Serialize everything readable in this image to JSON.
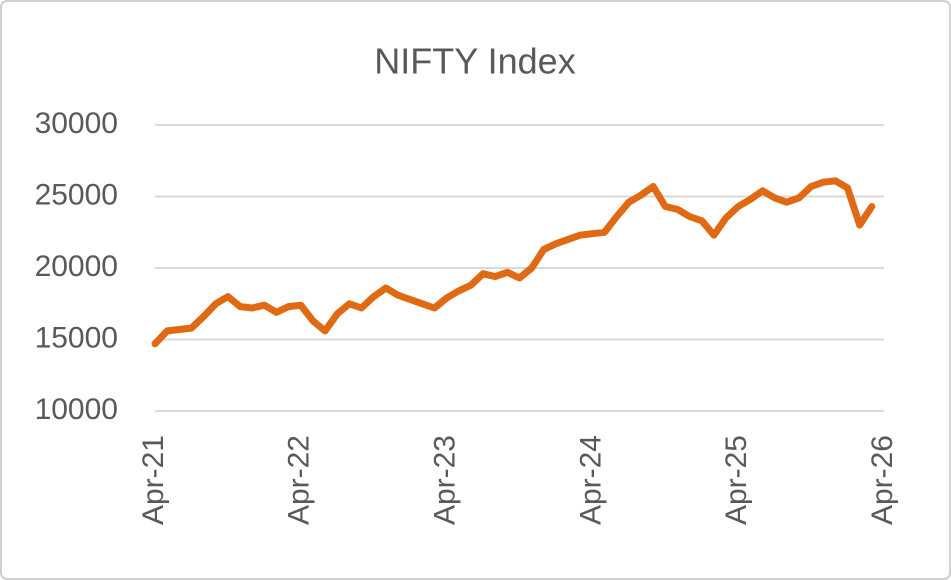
{
  "chart_data": {
    "type": "line",
    "title": "NIFTY Index",
    "x": [
      "2021-04",
      "2021-05",
      "2021-06",
      "2021-07",
      "2021-08",
      "2021-09",
      "2021-10",
      "2021-11",
      "2021-12",
      "2022-01",
      "2022-02",
      "2022-03",
      "2022-04",
      "2022-05",
      "2022-06",
      "2022-07",
      "2022-08",
      "2022-09",
      "2022-10",
      "2022-11",
      "2022-12",
      "2023-01",
      "2023-02",
      "2023-03",
      "2023-04",
      "2023-05",
      "2023-06",
      "2023-07",
      "2023-08",
      "2023-09",
      "2023-10",
      "2023-11",
      "2023-12",
      "2024-01",
      "2024-02",
      "2024-03",
      "2024-04",
      "2024-05",
      "2024-06",
      "2024-07",
      "2024-08",
      "2024-09",
      "2024-10",
      "2024-11",
      "2024-12",
      "2025-01",
      "2025-02",
      "2025-03",
      "2025-04",
      "2025-05",
      "2025-06",
      "2025-07",
      "2025-08",
      "2025-09",
      "2025-10",
      "2025-11",
      "2025-12",
      "2026-01",
      "2026-02",
      "2026-03"
    ],
    "values": [
      14700,
      15600,
      15700,
      15800,
      16600,
      17500,
      18000,
      17300,
      17200,
      17400,
      16900,
      17300,
      17400,
      16300,
      15600,
      16800,
      17500,
      17200,
      18000,
      18600,
      18100,
      17800,
      17500,
      17200,
      17900,
      18400,
      18800,
      19600,
      19400,
      19700,
      19300,
      20000,
      21300,
      21700,
      22000,
      22300,
      22400,
      22500,
      23600,
      24600,
      25100,
      25700,
      24300,
      24100,
      23600,
      23300,
      22300,
      23500,
      24300,
      24800,
      25400,
      24900,
      24600,
      24900,
      25700,
      26000,
      26100,
      25600,
      23000,
      24300
    ],
    "color": "#e06a14",
    "xlim": [
      "2021-04",
      "2026-04"
    ],
    "xticks": [
      {
        "value": "2021-04",
        "label": "Apr-21"
      },
      {
        "value": "2022-04",
        "label": "Apr-22"
      },
      {
        "value": "2023-04",
        "label": "Apr-23"
      },
      {
        "value": "2024-04",
        "label": "Apr-24"
      },
      {
        "value": "2025-04",
        "label": "Apr-25"
      },
      {
        "value": "2026-04",
        "label": "Apr-26"
      }
    ],
    "ylim": [
      10000,
      30000
    ],
    "yticks": [
      10000,
      15000,
      20000,
      25000,
      30000
    ],
    "grid": true
  }
}
